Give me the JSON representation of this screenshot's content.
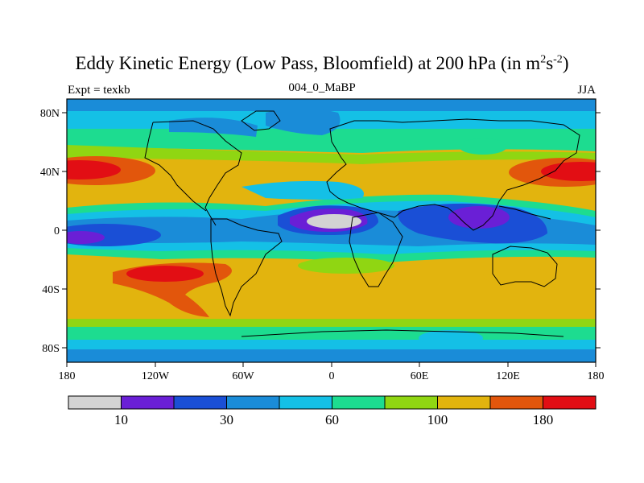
{
  "title": {
    "main": "Eddy Kinetic Energy (Low Pass, Bloomfield) at 200 hPa (in m",
    "sup1": "2",
    "mid": "s",
    "sup2": "-2",
    "end": ")"
  },
  "subtitle": {
    "left": "Expt = texkb",
    "center": "004_0_MaBP",
    "right": "JJA"
  },
  "axes": {
    "x_ticks": [
      "180",
      "120W",
      "60W",
      "0",
      "60E",
      "120E",
      "180"
    ],
    "y_ticks": [
      "80N",
      "40N",
      "0",
      "40S",
      "80S"
    ]
  },
  "colorbar": {
    "colors": [
      "#d3d3d3",
      "#6a1fd6",
      "#1a4fd6",
      "#1a8cd8",
      "#14c0e6",
      "#1ddc90",
      "#90d612",
      "#e2b40e",
      "#e2560c",
      "#e20e14"
    ],
    "labels": [
      "10",
      "30",
      "60",
      "100",
      "180"
    ]
  }
}
